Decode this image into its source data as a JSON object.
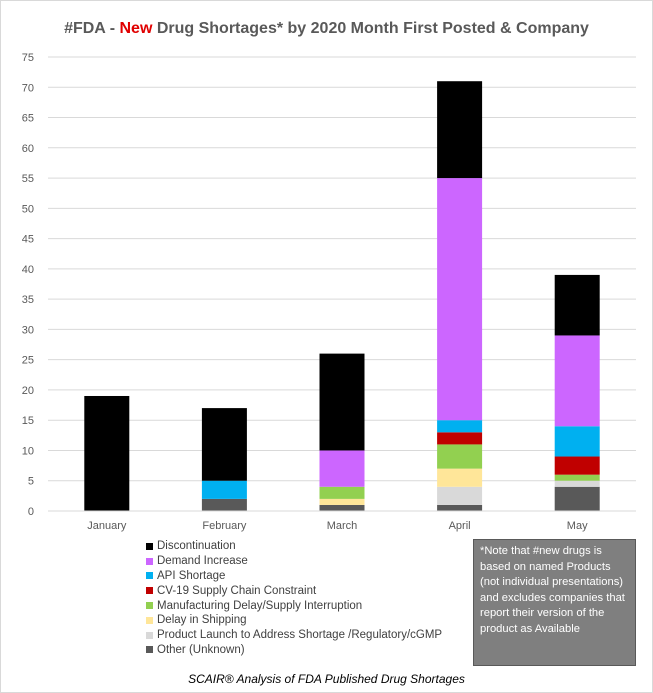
{
  "title": {
    "prefix": "#FDA - ",
    "accent": "New",
    "suffix": " Drug Shortages* by 2020 Month First Posted & Company",
    "accent_color": "#e00000"
  },
  "note": "*Note that #new drugs is based on named Products (not individual presentations) and excludes companies that report their version of the product as Available",
  "footer": "SCAIR® Analysis of FDA Published Drug Shortages",
  "chart_data": {
    "type": "bar",
    "stacked": true,
    "categories": [
      "January",
      "February",
      "March",
      "April",
      "May"
    ],
    "ylim": [
      0,
      75
    ],
    "yticks": [
      0,
      5,
      10,
      15,
      20,
      25,
      30,
      35,
      40,
      45,
      50,
      55,
      60,
      65,
      70,
      75
    ],
    "grid": true,
    "legend_position": "bottom-left",
    "series": [
      {
        "name": "Other (Unknown)",
        "color": "#595959",
        "values": [
          0,
          2,
          1,
          1,
          4
        ]
      },
      {
        "name": "Product Launch to Address Shortage /Regulatory/cGMP",
        "color": "#d9d9d9",
        "values": [
          0,
          0,
          0,
          3,
          1
        ]
      },
      {
        "name": "Delay in Shipping",
        "color": "#ffe699",
        "values": [
          0,
          0,
          1,
          3,
          0
        ]
      },
      {
        "name": "Manufacturing Delay/Supply Interruption",
        "color": "#92d050",
        "values": [
          0,
          0,
          2,
          4,
          1
        ]
      },
      {
        "name": "CV-19 Supply Chain Constraint",
        "color": "#c00000",
        "values": [
          0,
          0,
          0,
          2,
          3
        ]
      },
      {
        "name": "API Shortage",
        "color": "#00b0f0",
        "values": [
          0,
          3,
          0,
          2,
          5
        ]
      },
      {
        "name": "Demand Increase",
        "color": "#cc66ff",
        "values": [
          0,
          0,
          6,
          40,
          15
        ]
      },
      {
        "name": "Discontinuation",
        "color": "#000000",
        "values": [
          19,
          12,
          16,
          16,
          10
        ]
      }
    ]
  }
}
